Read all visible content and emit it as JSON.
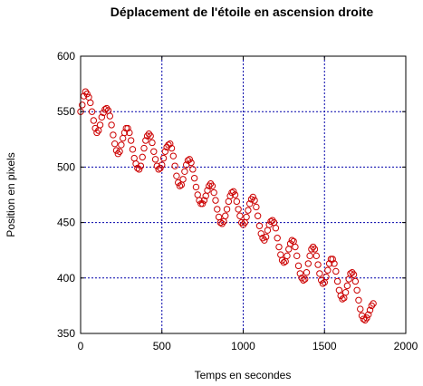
{
  "chart_data": {
    "type": "scatter",
    "title": "Déplacement de l'étoile en ascension droite",
    "xlabel": "Temps en secondes",
    "ylabel": "Position en pixels",
    "xlim": [
      0,
      2000
    ],
    "ylim": [
      350,
      600
    ],
    "xticks": [
      0,
      500,
      1000,
      1500,
      2000
    ],
    "yticks": [
      350,
      400,
      450,
      500,
      550,
      600
    ],
    "grid": true,
    "grid_style": "dashed",
    "colors": {
      "points": "#cc0000",
      "grid": "#0000aa",
      "axes": "#000000"
    },
    "marker": "open-circle",
    "series": [
      {
        "x": [
          0,
          10,
          20,
          30,
          40,
          50,
          60,
          70,
          80,
          90,
          100,
          110,
          120,
          130,
          140,
          150,
          160,
          170,
          180,
          190,
          200,
          210,
          220,
          230,
          240,
          250,
          260,
          270,
          280,
          290,
          300,
          310,
          320,
          330,
          340,
          350,
          360,
          370,
          380,
          390,
          400,
          410,
          420,
          430,
          440,
          450,
          460,
          470,
          480,
          490,
          500,
          510,
          520,
          530,
          540,
          550,
          560,
          570,
          580,
          590,
          600,
          610,
          620,
          630,
          640,
          650,
          660,
          670,
          680,
          690,
          700,
          710,
          720,
          730,
          740,
          750,
          760,
          770,
          780,
          790,
          800,
          810,
          820,
          830,
          840,
          850,
          860,
          870,
          880,
          890,
          900,
          910,
          920,
          930,
          940,
          950,
          960,
          970,
          980,
          990,
          1000,
          1010,
          1020,
          1030,
          1040,
          1050,
          1060,
          1070,
          1080,
          1090,
          1100,
          1110,
          1120,
          1130,
          1140,
          1150,
          1160,
          1170,
          1180,
          1190,
          1200,
          1210,
          1220,
          1230,
          1240,
          1250,
          1260,
          1270,
          1280,
          1290,
          1300,
          1310,
          1320,
          1330,
          1340,
          1350,
          1360,
          1370,
          1380,
          1390,
          1400,
          1410,
          1420,
          1430,
          1440,
          1450,
          1460,
          1470,
          1480,
          1490,
          1500,
          1510,
          1520,
          1530,
          1540,
          1550,
          1560,
          1570,
          1580,
          1590,
          1600,
          1610,
          1620,
          1630,
          1640,
          1650,
          1660,
          1670,
          1680,
          1690,
          1700,
          1710,
          1720,
          1730,
          1740,
          1750,
          1760,
          1770,
          1780,
          1790,
          1800
        ],
        "y": [
          550,
          556,
          564,
          568,
          566,
          563,
          558,
          550,
          542,
          535,
          531,
          533,
          538,
          545,
          549,
          552,
          553,
          551,
          546,
          538,
          529,
          521,
          515,
          512,
          514,
          520,
          526,
          531,
          535,
          535,
          531,
          524,
          516,
          508,
          503,
          499,
          498,
          501,
          509,
          517,
          524,
          528,
          530,
          528,
          522,
          514,
          507,
          501,
          498,
          499,
          502,
          508,
          514,
          518,
          520,
          521,
          517,
          510,
          501,
          492,
          486,
          483,
          484,
          489,
          496,
          502,
          506,
          507,
          504,
          498,
          490,
          482,
          475,
          470,
          467,
          467,
          470,
          474,
          479,
          483,
          485,
          483,
          477,
          470,
          462,
          455,
          450,
          449,
          451,
          456,
          462,
          469,
          474,
          477,
          478,
          475,
          469,
          462,
          456,
          450,
          448,
          450,
          455,
          461,
          467,
          471,
          473,
          470,
          464,
          456,
          447,
          440,
          436,
          434,
          437,
          443,
          448,
          451,
          452,
          450,
          445,
          436,
          428,
          421,
          416,
          414,
          415,
          420,
          426,
          431,
          434,
          433,
          428,
          420,
          411,
          404,
          400,
          398,
          399,
          405,
          413,
          420,
          426,
          428,
          426,
          420,
          412,
          404,
          398,
          395,
          396,
          401,
          407,
          413,
          417,
          417,
          413,
          406,
          397,
          389,
          384,
          381,
          382,
          387,
          393,
          399,
          404,
          405,
          403,
          397,
          389,
          380,
          372,
          366,
          363,
          362,
          364,
          367,
          371,
          375,
          377
        ]
      }
    ]
  }
}
